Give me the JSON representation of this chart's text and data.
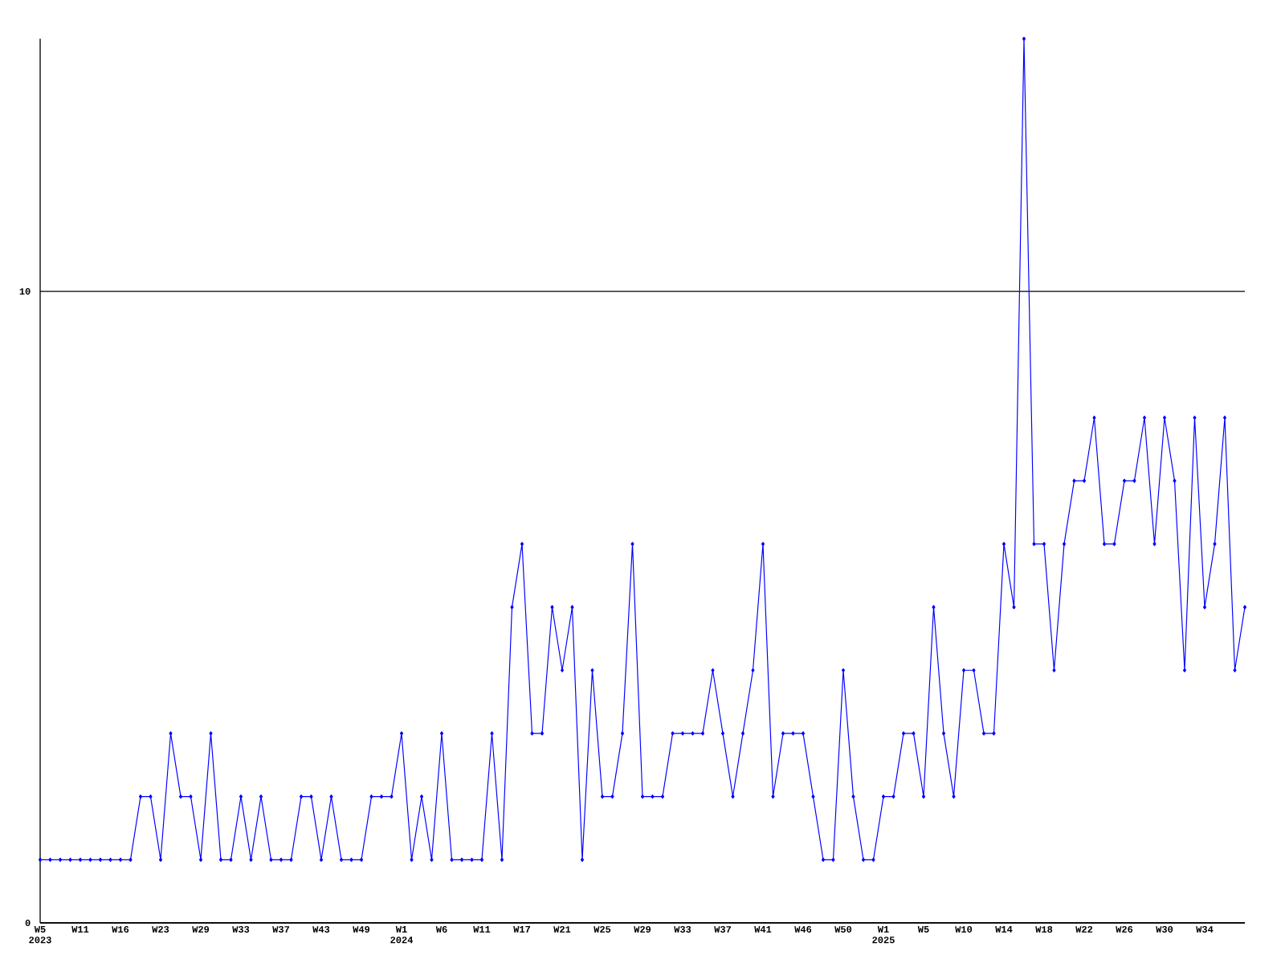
{
  "chart_data": {
    "type": "line",
    "categories": [
      "W5 2023",
      null,
      null,
      null,
      "W11",
      null,
      null,
      null,
      "W16",
      null,
      null,
      null,
      "W23",
      null,
      null,
      null,
      "W29",
      null,
      null,
      null,
      "W33",
      null,
      null,
      null,
      "W37",
      null,
      null,
      null,
      "W43",
      null,
      null,
      null,
      "W49",
      null,
      null,
      null,
      "W1 2024",
      null,
      null,
      null,
      "W6",
      null,
      null,
      null,
      "W11",
      null,
      null,
      null,
      "W17",
      null,
      null,
      null,
      "W21",
      null,
      null,
      null,
      "W25",
      null,
      null,
      null,
      "W29",
      null,
      null,
      null,
      "W33",
      null,
      null,
      null,
      "W37",
      null,
      null,
      null,
      "W41",
      null,
      null,
      null,
      "W46",
      null,
      null,
      null,
      "W50",
      null,
      null,
      null,
      "W1 2025",
      null,
      null,
      null,
      "W5",
      null,
      null,
      null,
      "W10",
      null,
      null,
      null,
      "W14",
      null,
      null,
      null,
      "W18",
      null,
      null,
      null,
      "W22",
      null,
      null,
      null,
      "W26",
      null,
      null,
      null,
      "W30",
      null,
      null,
      null,
      "W34",
      null,
      null,
      null,
      null
    ],
    "values": [
      1,
      1,
      1,
      1,
      1,
      1,
      1,
      1,
      1,
      1,
      2,
      2,
      1,
      3,
      2,
      2,
      1,
      3,
      1,
      1,
      2,
      1,
      2,
      1,
      1,
      1,
      2,
      2,
      1,
      2,
      1,
      1,
      1,
      2,
      2,
      2,
      3,
      1,
      2,
      1,
      3,
      1,
      1,
      1,
      1,
      3,
      1,
      5,
      6,
      3,
      3,
      5,
      4,
      5,
      1,
      4,
      2,
      2,
      3,
      6,
      2,
      2,
      2,
      3,
      3,
      3,
      3,
      4,
      3,
      2,
      3,
      4,
      6,
      2,
      3,
      3,
      3,
      2,
      1,
      1,
      4,
      2,
      1,
      1,
      2,
      2,
      3,
      3,
      2,
      5,
      3,
      2,
      4,
      4,
      3,
      3,
      6,
      5,
      14,
      6,
      6,
      4,
      6,
      7,
      7,
      8,
      6,
      6,
      7,
      7,
      8,
      6,
      8,
      7,
      4,
      8,
      5,
      6,
      8,
      4,
      5
    ],
    "color": "#0000ff",
    "ylim": [
      0,
      14
    ],
    "yticks": [
      0,
      10
    ],
    "grid": "y",
    "marker": "diamond",
    "line_style": "solid"
  }
}
